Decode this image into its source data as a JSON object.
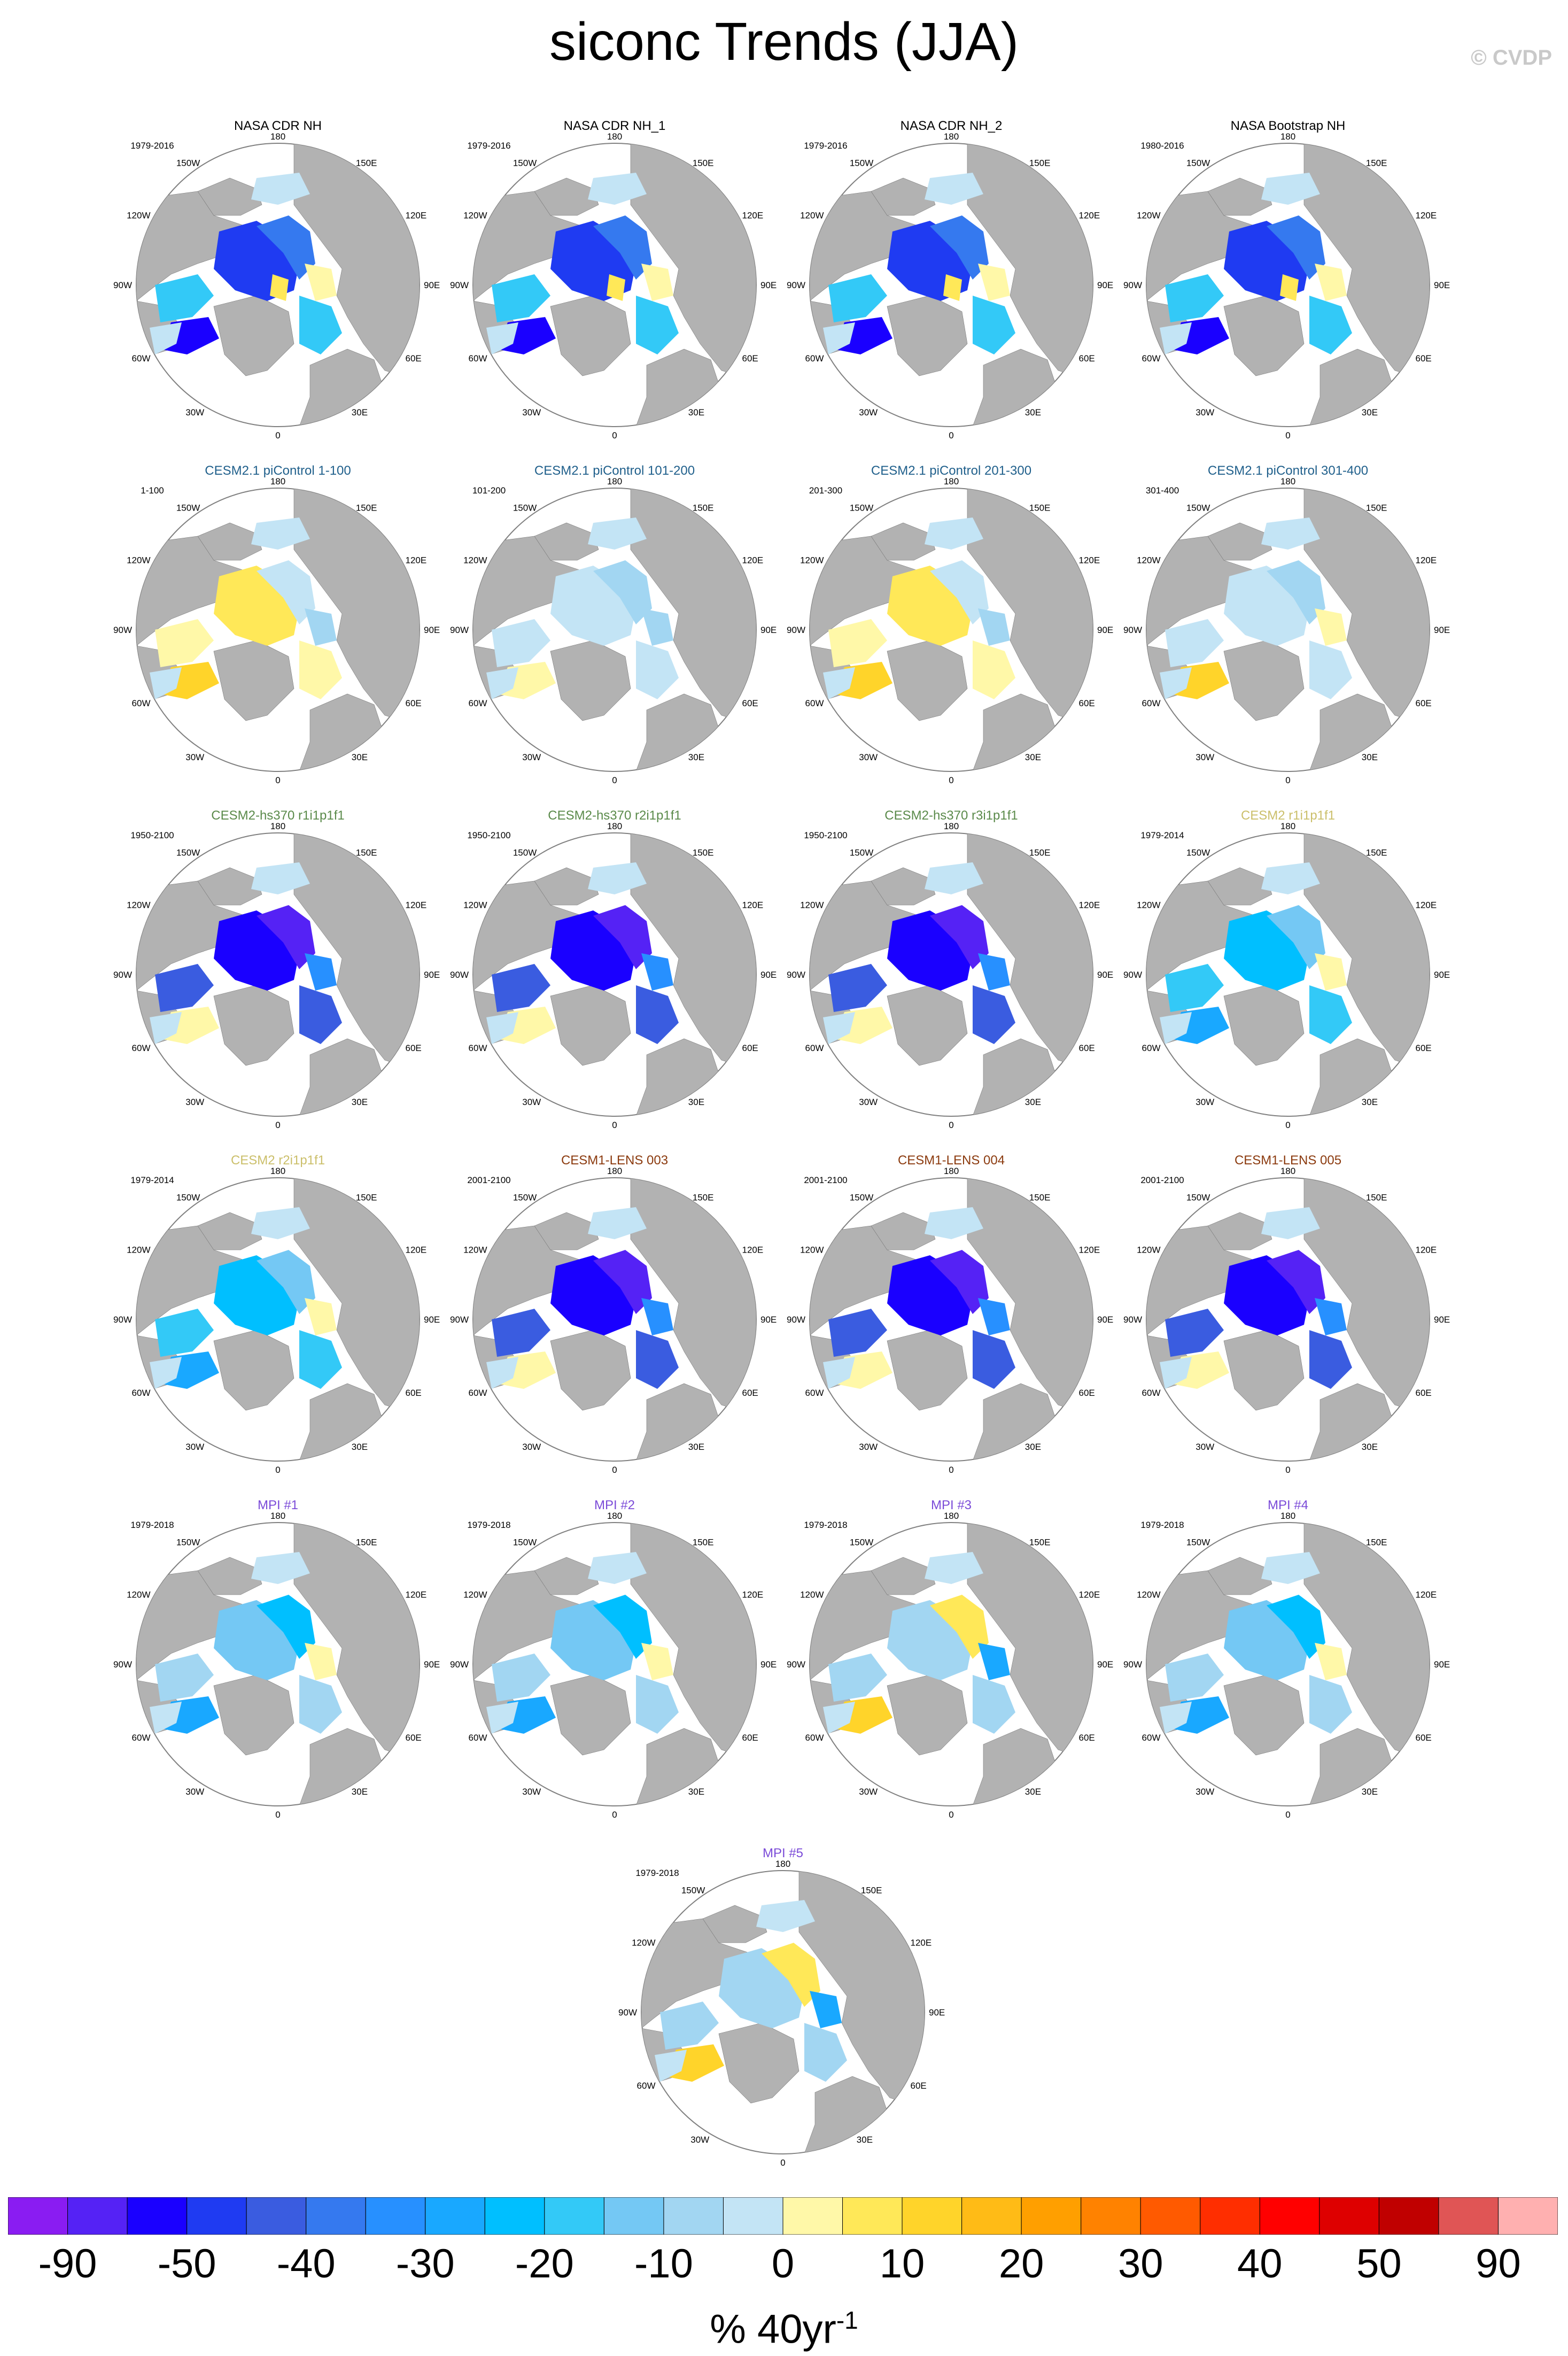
{
  "title": "siconc Trends (JJA)",
  "copyright": "© CVDP",
  "colors": {
    "land": "#b2b2b2",
    "ocean": "#ffffff",
    "outline": "#808080",
    "title_obs": "#000000",
    "title_picontrol": "#1f5f8b",
    "title_hs370": "#5a8a4a",
    "title_cesm2": "#cbbf6a",
    "title_lens": "#8b3a0e",
    "title_mpi": "#7b4bd8"
  },
  "map_labels": {
    "top": "180",
    "upper_left": "150W",
    "left_high": "120W",
    "left": "90W",
    "left_low": "60W",
    "bottom_left": "30W",
    "bottom": "0",
    "bottom_right": "30E",
    "right_low": "60E",
    "right": "90E",
    "right_high": "120E",
    "upper_right": "150E"
  },
  "panels": [
    {
      "title": "NASA CDR NH",
      "period": "1979-2016",
      "group": "obs",
      "pattern": "obs"
    },
    {
      "title": "NASA CDR NH_1",
      "period": "1979-2016",
      "group": "obs",
      "pattern": "obs"
    },
    {
      "title": "NASA CDR NH_2",
      "period": "1979-2016",
      "group": "obs",
      "pattern": "obs"
    },
    {
      "title": "NASA Bootstrap NH",
      "period": "1980-2016",
      "group": "obs",
      "pattern": "obs"
    },
    {
      "title": "CESM2.1 piControl 1-100",
      "period": "1-100",
      "group": "picontrol",
      "pattern": "pi_pos"
    },
    {
      "title": "CESM2.1 piControl 101-200",
      "period": "101-200",
      "group": "picontrol",
      "pattern": "pi_neg"
    },
    {
      "title": "CESM2.1 piControl 201-300",
      "period": "201-300",
      "group": "picontrol",
      "pattern": "pi_pos"
    },
    {
      "title": "CESM2.1 piControl 301-400",
      "period": "301-400",
      "group": "picontrol",
      "pattern": "pi_mix"
    },
    {
      "title": "CESM2-hs370 r1i1p1f1",
      "period": "1950-2100",
      "group": "hs370",
      "pattern": "strong"
    },
    {
      "title": "CESM2-hs370 r2i1p1f1",
      "period": "1950-2100",
      "group": "hs370",
      "pattern": "strong"
    },
    {
      "title": "CESM2-hs370 r3i1p1f1",
      "period": "1950-2100",
      "group": "hs370",
      "pattern": "strong"
    },
    {
      "title": "CESM2 r1i1p1f1",
      "period": "1979-2014",
      "group": "cesm2",
      "pattern": "moderate"
    },
    {
      "title": "CESM2 r2i1p1f1",
      "period": "1979-2014",
      "group": "cesm2",
      "pattern": "moderate"
    },
    {
      "title": "CESM1-LENS 003",
      "period": "2001-2100",
      "group": "lens",
      "pattern": "strong"
    },
    {
      "title": "CESM1-LENS 004",
      "period": "2001-2100",
      "group": "lens",
      "pattern": "strong"
    },
    {
      "title": "CESM1-LENS 005",
      "period": "2001-2100",
      "group": "lens",
      "pattern": "strong"
    },
    {
      "title": "MPI #1",
      "period": "1979-2018",
      "group": "mpi",
      "pattern": "mpi"
    },
    {
      "title": "MPI #2",
      "period": "1979-2018",
      "group": "mpi",
      "pattern": "mpi"
    },
    {
      "title": "MPI #3",
      "period": "1979-2018",
      "group": "mpi",
      "pattern": "mpi_pos"
    },
    {
      "title": "MPI #4",
      "period": "1979-2018",
      "group": "mpi",
      "pattern": "mpi"
    },
    {
      "title": "MPI #5",
      "period": "1979-2018",
      "group": "mpi",
      "pattern": "mpi_pos"
    }
  ],
  "chart_data": {
    "type": "heatmap",
    "title": "siconc Trends (JJA)",
    "projection": "north polar stereographic",
    "variable": "siconc",
    "season": "JJA",
    "units": "% 40yr",
    "units_exponent": "-1",
    "colorbar": {
      "orientation": "horizontal",
      "colors": [
        "#8a1cf2",
        "#5522f5",
        "#1a00ff",
        "#1f3bf2",
        "#3a5ce0",
        "#3579ef",
        "#2790ff",
        "#19a8ff",
        "#00bfff",
        "#33c9f7",
        "#74c8f4",
        "#a2d6f2",
        "#c3e4f5",
        "#fff8a8",
        "#ffe858",
        "#ffd42a",
        "#ffbb16",
        "#ff9f00",
        "#ff8200",
        "#ff5a00",
        "#ff2e00",
        "#ff0000",
        "#de0000",
        "#c00000",
        "#e05555",
        "#ffb0b0"
      ],
      "labels": [
        "-90",
        "-50",
        "-40",
        "-30",
        "-20",
        "-10",
        "0",
        "10",
        "20",
        "30",
        "40",
        "50",
        "90"
      ]
    }
  }
}
